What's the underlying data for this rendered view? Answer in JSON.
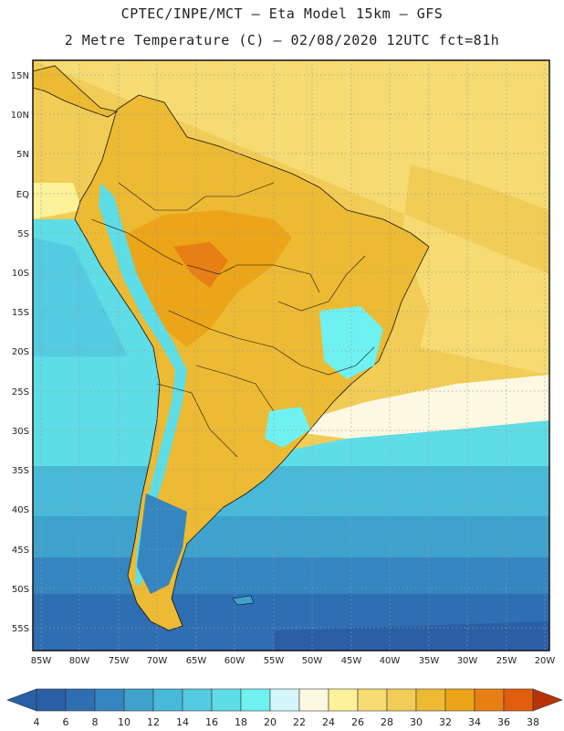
{
  "header": {
    "line1": "CPTEC/INPE/MCT –  Eta Model 15km – GFS",
    "line2": "2 Metre Temperature (C) – 02/08/2020 12UTC fct=81h"
  },
  "axes": {
    "lat_labels": [
      "15N",
      "10N",
      "5N",
      "EQ",
      "5S",
      "10S",
      "15S",
      "20S",
      "25S",
      "30S",
      "35S",
      "40S",
      "45S",
      "50S",
      "55S"
    ],
    "lon_labels": [
      "85W",
      "80W",
      "75W",
      "70W",
      "65W",
      "60W",
      "55W",
      "50W",
      "45W",
      "40W",
      "35W",
      "30W",
      "25W",
      "20W"
    ]
  },
  "colorbar": {
    "labels": [
      "4",
      "6",
      "8",
      "10",
      "12",
      "14",
      "16",
      "18",
      "20",
      "22",
      "24",
      "26",
      "28",
      "30",
      "32",
      "34",
      "36",
      "38"
    ],
    "colors": [
      "#2a5fa6",
      "#2e6eb3",
      "#3585c0",
      "#3ea2cd",
      "#48b9d9",
      "#54cbe0",
      "#5fdde6",
      "#70f1f1",
      "#d2f6fb",
      "#fdf8e2",
      "#fdf199",
      "#f6db72",
      "#f1cc56",
      "#ecba33",
      "#eca419",
      "#e77f14",
      "#e05e0e",
      "#cf430c"
    ],
    "under_color": "#2a5fa6",
    "over_color": "#b8330a"
  }
}
